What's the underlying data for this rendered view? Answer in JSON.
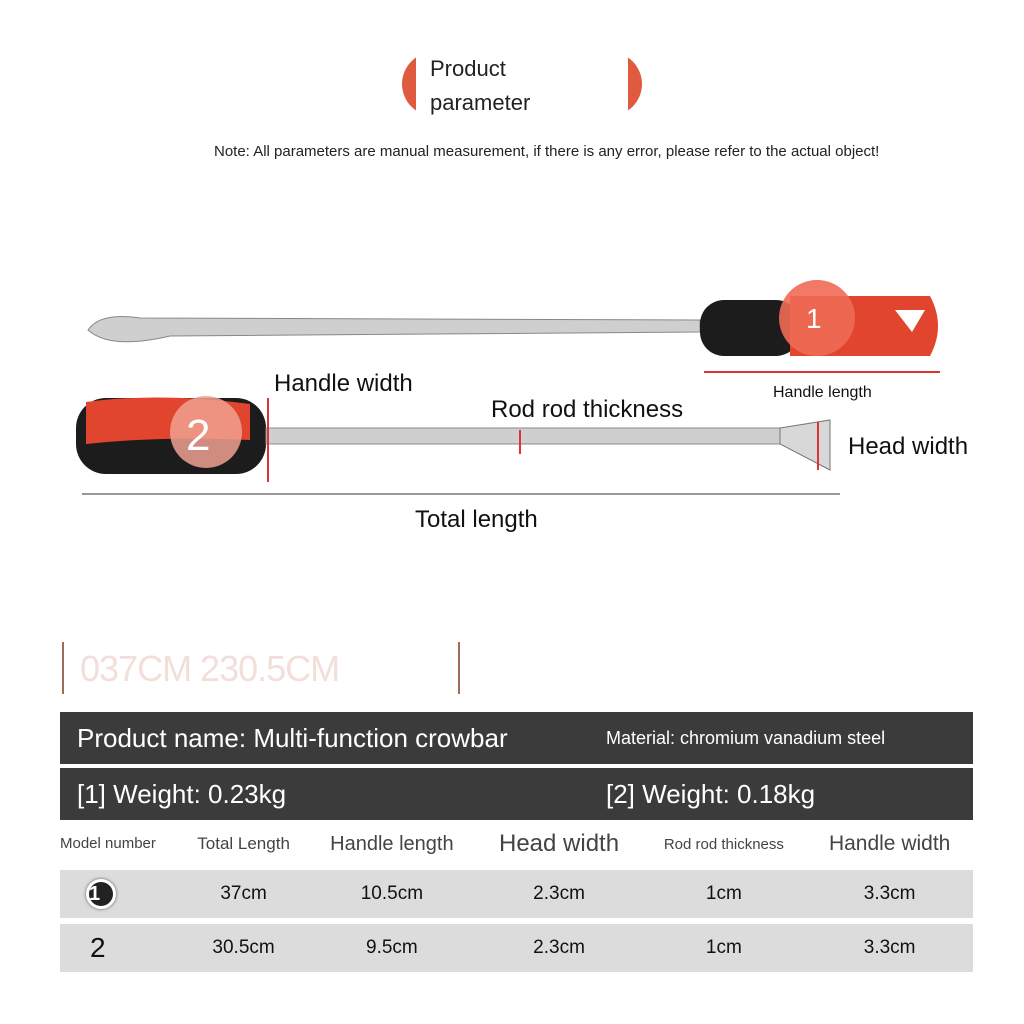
{
  "header": {
    "title_line1": "Product",
    "title_line2": "parameter",
    "note": "Note: All parameters are manual measurement, if there is any error, please refer to the actual object!"
  },
  "diagram": {
    "badge1": "1",
    "badge2": "2",
    "handle_length": "Handle length",
    "handle_width": "Handle width",
    "rod_thickness": "Rod rod thickness",
    "head_width": "Head width",
    "total_length": "Total length",
    "colors": {
      "handle_red": "#e2452e",
      "handle_black": "#1c1c1c",
      "steel": "#c8c8c8"
    }
  },
  "faded_text": "037CM 230.5CM",
  "info": {
    "product_name": "Product name: Multi-function crowbar",
    "material": "Material: chromium vanadium steel",
    "weight1": "[1] Weight: 0.23kg",
    "weight2": "[2] Weight: 0.18kg"
  },
  "table": {
    "headers": [
      "Model number",
      "Total Length",
      "Handle length",
      "Head width",
      "Rod rod thickness",
      "Handle width"
    ],
    "rows": [
      {
        "model": "1",
        "cells": [
          "37cm",
          "10.5cm",
          "2.3cm",
          "1cm",
          "3.3cm"
        ]
      },
      {
        "model": "2",
        "cells": [
          "30.5cm",
          "9.5cm",
          "2.3cm",
          "1cm",
          "3.3cm"
        ]
      }
    ]
  }
}
